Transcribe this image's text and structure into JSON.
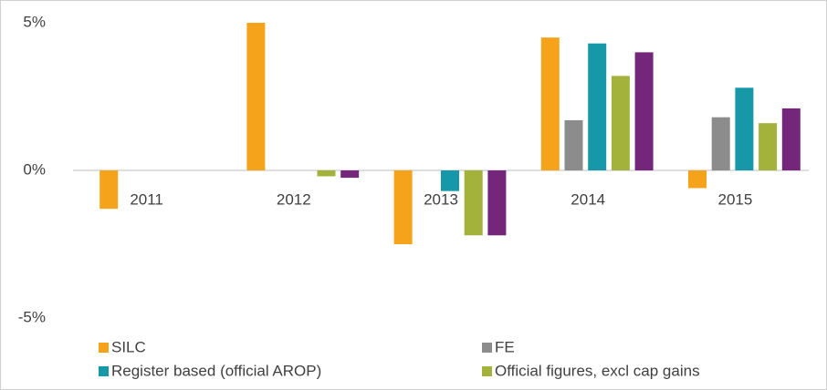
{
  "chart_data": {
    "type": "bar",
    "categories": [
      "2011",
      "2012",
      "2013",
      "2014",
      "2015"
    ],
    "series": [
      {
        "name": "SILC",
        "color": "#f5a31a",
        "values": [
          -1.3,
          5.0,
          -2.5,
          4.5,
          -0.6
        ]
      },
      {
        "name": "FE",
        "color": "#8c8c8c",
        "values": [
          null,
          null,
          null,
          1.7,
          1.8
        ]
      },
      {
        "name": "Register based (official AROP)",
        "color": "#1798a8",
        "values": [
          null,
          null,
          -0.7,
          4.3,
          2.8
        ]
      },
      {
        "name": "Official figures, excl cap gains",
        "color": "#a3b23a",
        "values": [
          null,
          -0.2,
          -2.2,
          3.2,
          1.6
        ]
      },
      {
        "color": "#74267a",
        "values": [
          null,
          -0.25,
          -2.2,
          4.0,
          2.1
        ]
      }
    ],
    "ylim": [
      -5,
      5
    ],
    "yticks": [
      {
        "value": -5,
        "label": "-5%"
      },
      {
        "value": 0,
        "label": "0%"
      },
      {
        "value": 5,
        "label": "5%"
      }
    ]
  }
}
